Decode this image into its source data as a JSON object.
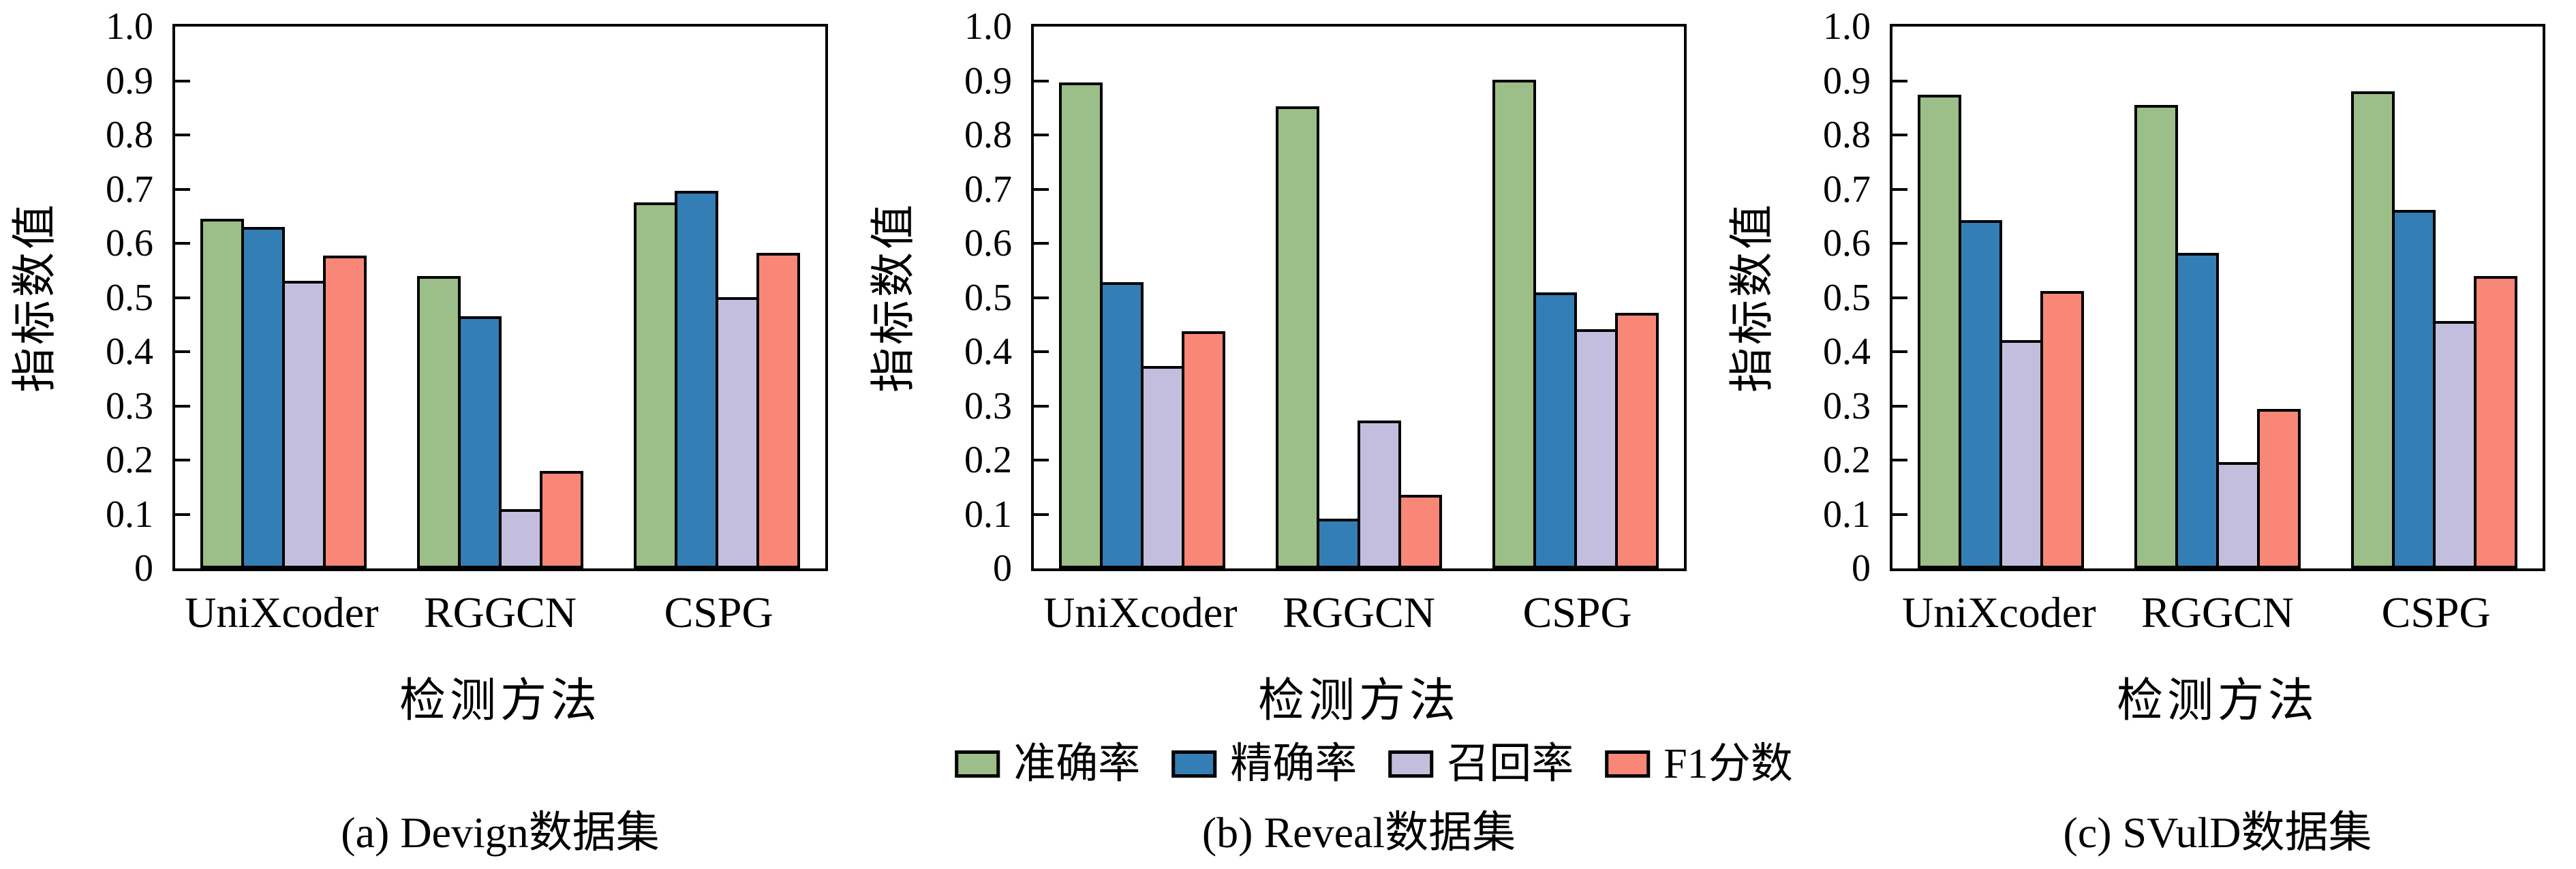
{
  "figure_title": "",
  "legend": {
    "position": "bottom-center",
    "items": [
      {
        "label": "准确率",
        "color": "#9cbe88"
      },
      {
        "label": "精确率",
        "color": "#347eb6"
      },
      {
        "label": "召回率",
        "color": "#c4bede"
      },
      {
        "label": "F1分数",
        "color": "#f98778"
      }
    ]
  },
  "colors": {
    "axis": "#000000",
    "bar_border": "#000000",
    "background": "#ffffff"
  },
  "chart_data": [
    {
      "type": "bar",
      "caption": "(a) Devign数据集",
      "xlabel": "检测方法",
      "ylabel": "指标数值",
      "categories": [
        "UniXcoder",
        "RGGCN",
        "CSPG"
      ],
      "series": [
        {
          "name": "准确率",
          "color": "#9cbe88",
          "values": [
            0.645,
            0.54,
            0.676
          ]
        },
        {
          "name": "精确率",
          "color": "#347eb6",
          "values": [
            0.63,
            0.465,
            0.697
          ]
        },
        {
          "name": "召回率",
          "color": "#c4bede",
          "values": [
            0.531,
            0.109,
            0.501
          ]
        },
        {
          "name": "F1分数",
          "color": "#f98778",
          "values": [
            0.577,
            0.18,
            0.583
          ]
        }
      ],
      "ylim": [
        0,
        1.0
      ],
      "yticks": [
        "1.0",
        "0.9",
        "0.8",
        "0.7",
        "0.6",
        "0.5",
        "0.4",
        "0.3",
        "0.2",
        "0.1",
        "0"
      ],
      "grid": false,
      "box": true
    },
    {
      "type": "bar",
      "caption": "(b) Reveal数据集",
      "xlabel": "检测方法",
      "ylabel": "指标数值",
      "categories": [
        "UniXcoder",
        "RGGCN",
        "CSPG"
      ],
      "series": [
        {
          "name": "准确率",
          "color": "#9cbe88",
          "values": [
            0.897,
            0.853,
            0.902
          ]
        },
        {
          "name": "精确率",
          "color": "#347eb6",
          "values": [
            0.528,
            0.092,
            0.51
          ]
        },
        {
          "name": "召回率",
          "color": "#c4bede",
          "values": [
            0.374,
            0.273,
            0.442
          ]
        },
        {
          "name": "F1分数",
          "color": "#f98778",
          "values": [
            0.438,
            0.136,
            0.472
          ]
        }
      ],
      "ylim": [
        0,
        1.0
      ],
      "yticks": [
        "1.0",
        "0.9",
        "0.8",
        "0.7",
        "0.6",
        "0.5",
        "0.4",
        "0.3",
        "0.2",
        "0.1",
        "0"
      ],
      "grid": false,
      "box": true
    },
    {
      "type": "bar",
      "caption": "(c) SVulD数据集",
      "xlabel": "检测方法",
      "ylabel": "指标数值",
      "categories": [
        "UniXcoder",
        "RGGCN",
        "CSPG"
      ],
      "series": [
        {
          "name": "准确率",
          "color": "#9cbe88",
          "values": [
            0.874,
            0.855,
            0.881
          ]
        },
        {
          "name": "精确率",
          "color": "#347eb6",
          "values": [
            0.643,
            0.583,
            0.662
          ]
        },
        {
          "name": "召回率",
          "color": "#c4bede",
          "values": [
            0.422,
            0.196,
            0.456
          ]
        },
        {
          "name": "F1分数",
          "color": "#f98778",
          "values": [
            0.512,
            0.294,
            0.54
          ]
        }
      ],
      "ylim": [
        0,
        1.0
      ],
      "yticks": [
        "1.0",
        "0.9",
        "0.8",
        "0.7",
        "0.6",
        "0.5",
        "0.4",
        "0.3",
        "0.2",
        "0.1",
        "0"
      ],
      "grid": false,
      "box": true
    }
  ]
}
